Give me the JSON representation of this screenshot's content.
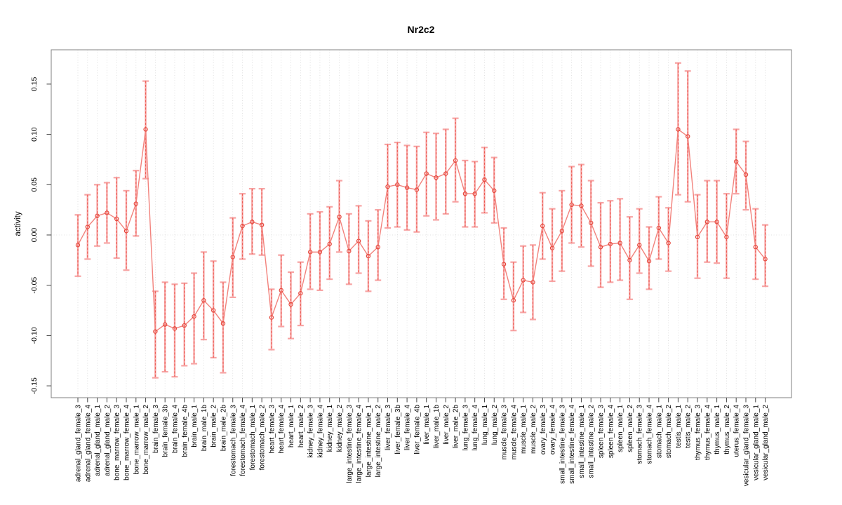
{
  "title": "Nr2c2",
  "ylabel": "activity",
  "colors": {
    "error_bar": "#f7a4a4",
    "error_bar_dash": "#ea5045",
    "series_line": "#f2827c",
    "marker": "#e6483d",
    "gridline": "#d9d9d9",
    "axis_box": "#808080",
    "tick": "#444444",
    "text": "#000000"
  },
  "chart_data": {
    "type": "scatter",
    "subtype": "error-bar plot (point estimates with confidence intervals, connected by line)",
    "title": "Nr2c2",
    "xlabel": "",
    "ylabel": "activity",
    "ylim": [
      -0.16,
      0.185
    ],
    "yticks": [
      0.15,
      0.1,
      0.05,
      0.0,
      -0.05,
      -0.1,
      -0.15
    ],
    "grid": "vertical dotted gridline at every category; horizontal dotted line at y=0 only",
    "legend": "none",
    "categories": [
      "adrenal_gland_female_3",
      "adrenal_gland_female_4",
      "adrenal_gland_male_1",
      "adrenal_gland_male_2",
      "bone_marrow_female_3",
      "bone_marrow_female_4",
      "bone_marrow_male_1",
      "bone_marrow_male_2",
      "brain_female_3",
      "brain_female_3b",
      "brain_female_4",
      "brain_female_4b",
      "brain_male_1",
      "brain_male_1b",
      "brain_male_2",
      "brain_male_2b",
      "forestomach_female_3",
      "forestomach_female_4",
      "forestomach_male_1",
      "forestomach_male_2",
      "heart_female_3",
      "heart_female_4",
      "heart_male_1",
      "heart_male_2",
      "kidney_female_3",
      "kidney_female_4",
      "kidney_male_1",
      "kidney_male_2",
      "large_intestine_female_3",
      "large_intestine_female_4",
      "large_intestine_male_1",
      "large_intestine_male_2",
      "liver_female_3",
      "liver_female_3b",
      "liver_female_4",
      "liver_female_4b",
      "liver_male_1",
      "liver_male_1b",
      "liver_male_2",
      "liver_male_2b",
      "lung_female_3",
      "lung_female_4",
      "lung_male_1",
      "lung_male_2",
      "muscle_female_3",
      "muscle_female_4",
      "muscle_male_1",
      "muscle_male_2",
      "ovary_female_3",
      "ovary_female_4",
      "small_intestine_female_3",
      "small_intestine_female_4",
      "small_intestine_male_1",
      "small_intestine_male_2",
      "spleen_female_3",
      "spleen_female_4",
      "spleen_male_1",
      "spleen_male_2",
      "stomach_female_3",
      "stomach_female_4",
      "stomach_male_1",
      "stomach_male_2",
      "testis_male_1",
      "testis_male_2",
      "thymus_female_3",
      "thymus_female_4",
      "thymus_male_1",
      "thymus_male_2",
      "uterus_female_4",
      "vesicular_gland_female_3",
      "vesicular_gland_male_1",
      "vesicular_gland_male_2"
    ],
    "series": [
      {
        "name": "activity",
        "values": [
          -0.01,
          0.008,
          0.019,
          0.022,
          0.016,
          0.004,
          0.031,
          0.105,
          -0.096,
          -0.089,
          -0.093,
          -0.09,
          -0.081,
          -0.065,
          -0.075,
          -0.088,
          -0.022,
          0.009,
          0.013,
          0.01,
          -0.082,
          -0.055,
          -0.069,
          -0.058,
          -0.017,
          -0.017,
          -0.009,
          0.018,
          -0.016,
          -0.006,
          -0.021,
          -0.012,
          0.048,
          0.05,
          0.047,
          0.045,
          0.061,
          0.057,
          0.061,
          0.074,
          0.041,
          0.041,
          0.055,
          0.044,
          -0.029,
          -0.065,
          -0.045,
          -0.047,
          0.009,
          -0.013,
          0.004,
          0.03,
          0.029,
          0.012,
          -0.012,
          -0.009,
          -0.008,
          -0.025,
          -0.01,
          -0.026,
          0.007,
          -0.008,
          0.105,
          0.098,
          -0.002,
          0.013,
          0.013,
          -0.002,
          0.073,
          0.06,
          -0.012,
          -0.024
        ],
        "lower": [
          -0.041,
          -0.024,
          -0.011,
          -0.008,
          -0.023,
          -0.035,
          -0.001,
          0.056,
          -0.142,
          -0.136,
          -0.141,
          -0.13,
          -0.128,
          -0.104,
          -0.122,
          -0.137,
          -0.062,
          -0.024,
          -0.019,
          -0.02,
          -0.114,
          -0.091,
          -0.103,
          -0.09,
          -0.054,
          -0.055,
          -0.044,
          -0.017,
          -0.049,
          -0.038,
          -0.056,
          -0.045,
          0.007,
          0.008,
          0.005,
          0.003,
          0.019,
          0.015,
          0.021,
          0.033,
          0.008,
          0.008,
          0.022,
          0.012,
          -0.064,
          -0.095,
          -0.077,
          -0.084,
          -0.024,
          -0.046,
          -0.036,
          -0.008,
          -0.012,
          -0.031,
          -0.052,
          -0.047,
          -0.045,
          -0.064,
          -0.038,
          -0.054,
          -0.024,
          -0.036,
          0.04,
          0.033,
          -0.043,
          -0.027,
          -0.028,
          -0.043,
          0.041,
          0.025,
          -0.044,
          -0.051
        ],
        "upper": [
          0.02,
          0.04,
          0.05,
          0.052,
          0.057,
          0.044,
          0.064,
          0.153,
          -0.056,
          -0.047,
          -0.049,
          -0.048,
          -0.038,
          -0.017,
          -0.026,
          -0.047,
          0.017,
          0.041,
          0.046,
          0.046,
          -0.054,
          -0.02,
          -0.037,
          -0.027,
          0.021,
          0.023,
          0.028,
          0.054,
          0.021,
          0.029,
          0.014,
          0.025,
          0.09,
          0.092,
          0.089,
          0.088,
          0.102,
          0.101,
          0.105,
          0.116,
          0.074,
          0.073,
          0.087,
          0.077,
          0.007,
          -0.027,
          -0.011,
          -0.01,
          0.042,
          0.026,
          0.044,
          0.068,
          0.07,
          0.054,
          0.032,
          0.034,
          0.036,
          0.018,
          0.026,
          0.008,
          0.038,
          0.027,
          0.171,
          0.163,
          0.04,
          0.054,
          0.054,
          0.041,
          0.105,
          0.093,
          0.026,
          0.01
        ]
      }
    ]
  }
}
